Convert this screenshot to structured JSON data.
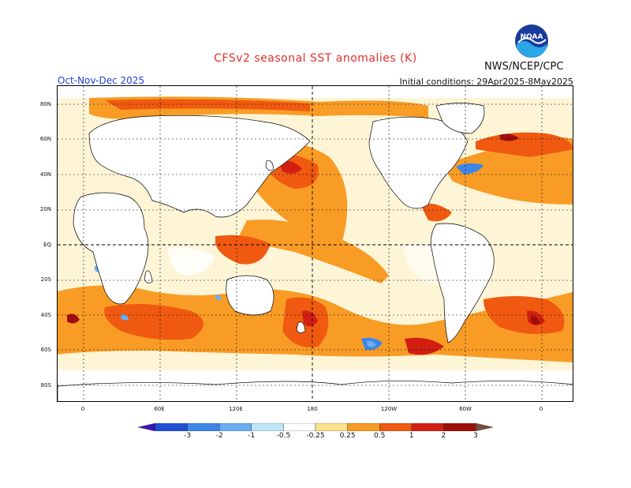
{
  "header": {
    "title": "CFSv2 seasonal SST anomalies (K)",
    "agency": "NWS/NCEP/CPC",
    "season": "Oct-Nov-Dec 2025",
    "initial_conditions": "Initial conditions: 29Apr2025-8May2025"
  },
  "logo": {
    "icon": "noaa-logo-icon",
    "text": "NOAA"
  },
  "map": {
    "lat_labels": [
      "80N",
      "60N",
      "40N",
      "20N",
      "EQ",
      "20S",
      "40S",
      "60S",
      "80S"
    ],
    "lon_labels": [
      "0",
      "60E",
      "120E",
      "180",
      "120W",
      "60W",
      "0"
    ]
  },
  "colorbar": {
    "labels": [
      "-3",
      "-2",
      "-1",
      "-0.5",
      "-0.25",
      "0.25",
      "0.5",
      "1",
      "2",
      "3"
    ],
    "colors": [
      "#3a14b8",
      "#1e4fd6",
      "#3d86e8",
      "#6aaef2",
      "#bfe6f8",
      "#ffffff",
      "#fde38c",
      "#f99c26",
      "#ef5a10",
      "#d21f12",
      "#9e0e0a",
      "#7a4a3a"
    ]
  },
  "colors": {
    "warm_weak": "#fde38c",
    "warm_mod": "#f99c26",
    "warm_strong": "#ef5a10",
    "warm_vstrong": "#d21f12",
    "warm_extreme": "#9e0e0a",
    "cool_weak": "#6aaef2",
    "cool_mod": "#3d86e8"
  }
}
